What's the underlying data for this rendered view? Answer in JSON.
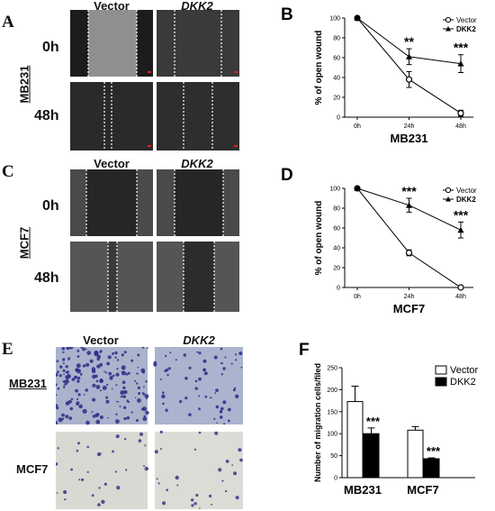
{
  "panels": {
    "A": {
      "label": "A",
      "col_labels": [
        "Vector",
        "DKK2"
      ],
      "row_labels": [
        "0h",
        "48h"
      ],
      "cell_line": "MB231"
    },
    "B": {
      "label": "B"
    },
    "C": {
      "label": "C",
      "col_labels": [
        "Vector",
        "DKK2"
      ],
      "row_labels": [
        "0h",
        "48h"
      ],
      "cell_line": "MCF7"
    },
    "D": {
      "label": "D"
    },
    "E": {
      "label": "E",
      "col_labels": [
        "Vector",
        "DKK2"
      ],
      "row_labels": [
        "MB231",
        "MCF7"
      ]
    },
    "F": {
      "label": "F"
    }
  },
  "colors": {
    "dark_micro": "#1c1c1c",
    "light_micro": "#8f8f8f",
    "stain_bg": "#a9b3cc",
    "stain_dot": "#2b2a86",
    "mcf7_bg": "#d9d8d2"
  },
  "chart_data": [
    {
      "id": "B",
      "type": "line",
      "x": [
        "0h",
        "24h",
        "48h"
      ],
      "ylabel": "% of open wound",
      "xlabel": "MB231",
      "ylim": [
        0,
        100
      ],
      "yticks": [
        0,
        20,
        40,
        60,
        80,
        100
      ],
      "legend_position": "top-right",
      "series": [
        {
          "name": "Vector",
          "marker": "open-circle",
          "values": [
            100,
            38,
            4
          ],
          "errors": [
            0,
            8,
            3
          ]
        },
        {
          "name": "DKK2",
          "marker": "filled-triangle",
          "values": [
            100,
            61,
            54
          ],
          "errors": [
            0,
            8,
            9
          ]
        }
      ],
      "annotations": [
        {
          "x": "24h",
          "text": "**"
        },
        {
          "x": "48h",
          "text": "***"
        }
      ]
    },
    {
      "id": "D",
      "type": "line",
      "x": [
        "0h",
        "24h",
        "48h"
      ],
      "ylabel": "% of open wound",
      "xlabel": "MCF7",
      "ylim": [
        0,
        100
      ],
      "yticks": [
        0,
        20,
        40,
        60,
        80,
        100
      ],
      "legend_position": "top-right",
      "series": [
        {
          "name": "Vector",
          "marker": "open-circle",
          "values": [
            100,
            35,
            0
          ],
          "errors": [
            0,
            3,
            1
          ]
        },
        {
          "name": "DKK2",
          "marker": "filled-triangle",
          "values": [
            100,
            83,
            58
          ],
          "errors": [
            0,
            7,
            8
          ]
        }
      ],
      "annotations": [
        {
          "x": "24h",
          "text": "***"
        },
        {
          "x": "48h",
          "text": "***"
        }
      ]
    },
    {
      "id": "F",
      "type": "bar",
      "categories": [
        "MB231",
        "MCF7"
      ],
      "ylabel": "Number  of migration cells/filed",
      "ylim": [
        0,
        250
      ],
      "yticks": [
        0,
        50,
        100,
        150,
        200,
        250
      ],
      "legend_position": "top-right",
      "series": [
        {
          "name": "Vector",
          "fill": "#ffffff",
          "values": [
            173,
            108
          ],
          "errors": [
            35,
            8
          ]
        },
        {
          "name": "DKK2",
          "fill": "#000000",
          "values": [
            100,
            43
          ],
          "errors": [
            13,
            2
          ]
        }
      ],
      "annotations": [
        {
          "category": "MB231",
          "series": "DKK2",
          "text": "***"
        },
        {
          "category": "MCF7",
          "series": "DKK2",
          "text": "***"
        }
      ]
    }
  ]
}
